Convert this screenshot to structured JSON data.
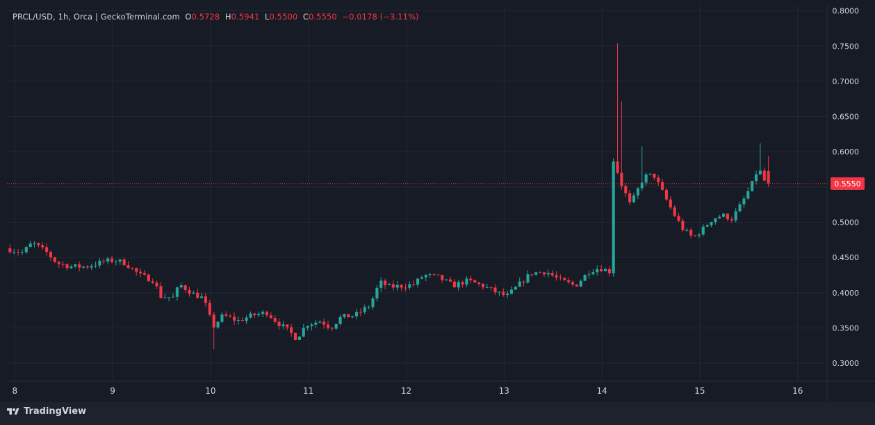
{
  "legend": {
    "pair": "PRCL/USD",
    "interval": "1h",
    "dex": "Orca",
    "source": "GeckoTerminal.com",
    "o_label": "O",
    "o_val": "0.5728",
    "h_label": "H",
    "h_val": "0.5941",
    "l_label": "L",
    "l_val": "0.5500",
    "c_label": "C",
    "c_val": "0.5550",
    "change": "−0.0178 (−3.11%)"
  },
  "branding": {
    "logo_text": "TradingView"
  },
  "colors": {
    "up": "#26a69a",
    "down": "#f23645",
    "grid": "#242832",
    "background": "#171b26",
    "text": "#d1d4dc",
    "price_tag": "#f23645"
  },
  "chart_data": {
    "type": "candlestick",
    "title": "PRCL/USD, 1h, Orca | GeckoTerminal.com",
    "xlabel": "",
    "ylabel": "",
    "x_ticks": [
      "8",
      "9",
      "10",
      "11",
      "12",
      "13",
      "14",
      "15",
      "16"
    ],
    "x_range_days": [
      7.92,
      16.3
    ],
    "y_ticks": [
      "0.8000",
      "0.7500",
      "0.7000",
      "0.6500",
      "0.6000",
      "0.5500",
      "0.5000",
      "0.4500",
      "0.4000",
      "0.3500",
      "0.3000"
    ],
    "ylim": [
      0.2745,
      0.8075
    ],
    "grid": true,
    "last_price": 0.555,
    "last_price_label": "0.5550",
    "anchors": [
      [
        7.93,
        0.463
      ],
      [
        8.1,
        0.457
      ],
      [
        8.2,
        0.471
      ],
      [
        8.35,
        0.457
      ],
      [
        8.45,
        0.442
      ],
      [
        8.6,
        0.437
      ],
      [
        8.75,
        0.437
      ],
      [
        8.95,
        0.445
      ],
      [
        9.05,
        0.446
      ],
      [
        9.15,
        0.442
      ],
      [
        9.3,
        0.425
      ],
      [
        9.45,
        0.417
      ],
      [
        9.5,
        0.395
      ],
      [
        9.65,
        0.393
      ],
      [
        9.7,
        0.412
      ],
      [
        9.85,
        0.398
      ],
      [
        9.95,
        0.392
      ],
      [
        10.0,
        0.37
      ],
      [
        10.05,
        0.352
      ],
      [
        10.15,
        0.368
      ],
      [
        10.3,
        0.36
      ],
      [
        10.45,
        0.368
      ],
      [
        10.6,
        0.372
      ],
      [
        10.7,
        0.358
      ],
      [
        10.8,
        0.348
      ],
      [
        10.9,
        0.335
      ],
      [
        11.0,
        0.355
      ],
      [
        11.15,
        0.36
      ],
      [
        11.25,
        0.35
      ],
      [
        11.35,
        0.365
      ],
      [
        11.5,
        0.368
      ],
      [
        11.65,
        0.382
      ],
      [
        11.75,
        0.415
      ],
      [
        11.85,
        0.408
      ],
      [
        12.0,
        0.41
      ],
      [
        12.1,
        0.412
      ],
      [
        12.2,
        0.425
      ],
      [
        12.35,
        0.422
      ],
      [
        12.5,
        0.41
      ],
      [
        12.65,
        0.417
      ],
      [
        12.8,
        0.41
      ],
      [
        12.95,
        0.4
      ],
      [
        13.05,
        0.395
      ],
      [
        13.2,
        0.415
      ],
      [
        13.3,
        0.428
      ],
      [
        13.45,
        0.43
      ],
      [
        13.6,
        0.417
      ],
      [
        13.75,
        0.41
      ],
      [
        13.9,
        0.432
      ],
      [
        14.0,
        0.435
      ],
      [
        14.1,
        0.43
      ],
      [
        14.14,
        0.595
      ],
      [
        14.2,
        0.56
      ],
      [
        14.25,
        0.545
      ],
      [
        14.3,
        0.525
      ],
      [
        14.35,
        0.535
      ],
      [
        14.45,
        0.565
      ],
      [
        14.55,
        0.567
      ],
      [
        14.65,
        0.54
      ],
      [
        14.75,
        0.513
      ],
      [
        14.85,
        0.49
      ],
      [
        14.95,
        0.478
      ],
      [
        15.05,
        0.49
      ],
      [
        15.15,
        0.505
      ],
      [
        15.25,
        0.51
      ],
      [
        15.35,
        0.505
      ],
      [
        15.45,
        0.527
      ],
      [
        15.55,
        0.553
      ],
      [
        15.62,
        0.578
      ],
      [
        15.67,
        0.56
      ],
      [
        15.72,
        0.555
      ]
    ],
    "wick_extremes": [
      [
        14.14,
        0.754
      ],
      [
        14.18,
        0.672
      ],
      [
        14.4,
        0.608
      ],
      [
        15.6,
        0.612
      ],
      [
        10.02,
        0.32
      ]
    ],
    "candles_per_day": 24,
    "last_candle": {
      "open": 0.5728,
      "high": 0.5941,
      "low": 0.55,
      "close": 0.555
    }
  }
}
